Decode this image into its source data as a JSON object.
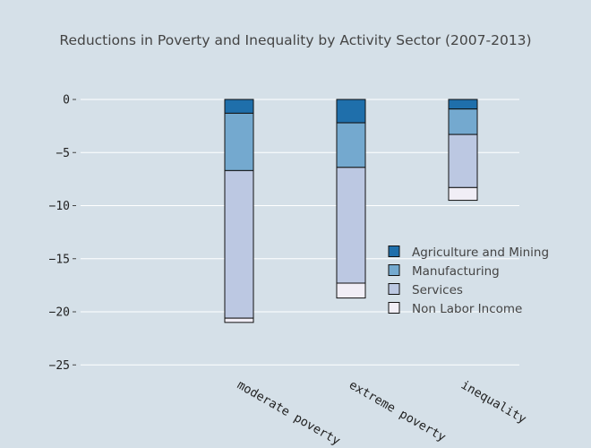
{
  "chart_data": {
    "type": "bar",
    "stacked": true,
    "title": "Reductions in Poverty and Inequality by Activity Sector (2007-2013)",
    "xlabel": "",
    "ylabel": "",
    "categories": [
      "moderate poverty",
      "extreme poverty",
      "inequality"
    ],
    "ylim": [
      -27,
      1.5
    ],
    "yticks": [
      0,
      -5,
      -10,
      -15,
      -20,
      -25
    ],
    "ytick_labels": [
      "0",
      "−5",
      "−10",
      "−15",
      "−20",
      "−25"
    ],
    "grid": true,
    "legend_position": "right",
    "series": [
      {
        "name": "Agriculture and Mining",
        "color": "#1f6fab",
        "values": [
          -1.3,
          -2.2,
          -0.9
        ]
      },
      {
        "name": "Manufacturing",
        "color": "#74a9cf",
        "values": [
          -5.4,
          -4.2,
          -2.4
        ]
      },
      {
        "name": "Services",
        "color": "#bcc8e2",
        "values": [
          -13.9,
          -10.9,
          -5.0
        ]
      },
      {
        "name": "Non Labor Income",
        "color": "#f1eef6",
        "values": [
          -0.4,
          -1.4,
          -1.2
        ]
      }
    ]
  }
}
